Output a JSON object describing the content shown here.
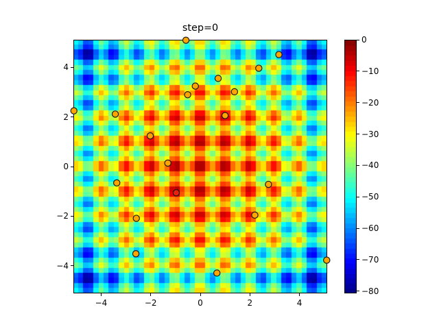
{
  "chart_data": {
    "type": "heatmap",
    "title": "step=0",
    "xlabel": "",
    "ylabel": "",
    "xlim": [
      -5.12,
      5.12
    ],
    "ylim": [
      -5.12,
      5.12
    ],
    "grid": false,
    "function": "-(20 + x^2 - 10cos(2*pi*x) + y^2 - 10cos(2*pi*y))  (negated Rastrigin)",
    "grid_cells": 50,
    "colormap": "jet",
    "color_range": [
      -80.7,
      0
    ],
    "xticks": [
      -4,
      -2,
      0,
      2,
      4
    ],
    "xtick_labels": [
      "−4",
      "−2",
      "0",
      "2",
      "4"
    ],
    "yticks": [
      -4,
      -2,
      0,
      2,
      4
    ],
    "ytick_labels": [
      "−4",
      "−2",
      "0",
      "2",
      "4"
    ],
    "colorbar": {
      "ticks": [
        0,
        -10,
        -20,
        -30,
        -40,
        -50,
        -60,
        -70,
        -80
      ],
      "tick_labels": [
        "0",
        "−10",
        "−20",
        "−30",
        "−40",
        "−50",
        "−60",
        "−70",
        "−80"
      ],
      "levels": 50
    },
    "scatter": {
      "name": "population",
      "marker": "circle",
      "fill": "#ffa500",
      "edge": "#1a1a1a",
      "points": [
        {
          "x": -0.58,
          "y": 5.1
        },
        {
          "x": 3.17,
          "y": 4.52
        },
        {
          "x": 2.36,
          "y": 3.97
        },
        {
          "x": 0.72,
          "y": 3.56
        },
        {
          "x": -0.2,
          "y": 3.25
        },
        {
          "x": 1.38,
          "y": 3.02
        },
        {
          "x": -0.51,
          "y": 2.9
        },
        {
          "x": -5.1,
          "y": 2.25
        },
        {
          "x": -3.43,
          "y": 2.12
        },
        {
          "x": 1.0,
          "y": 2.06
        },
        {
          "x": -2.02,
          "y": 1.24
        },
        {
          "x": -1.31,
          "y": 0.14
        },
        {
          "x": -3.37,
          "y": -0.66
        },
        {
          "x": 2.75,
          "y": -0.72
        },
        {
          "x": -0.97,
          "y": -1.06,
          "fill": "#e8200c"
        },
        {
          "x": 2.2,
          "y": -1.96
        },
        {
          "x": -2.58,
          "y": -2.09
        },
        {
          "x": -2.6,
          "y": -3.52
        },
        {
          "x": 5.1,
          "y": -3.78
        },
        {
          "x": 0.67,
          "y": -4.3
        }
      ]
    }
  }
}
